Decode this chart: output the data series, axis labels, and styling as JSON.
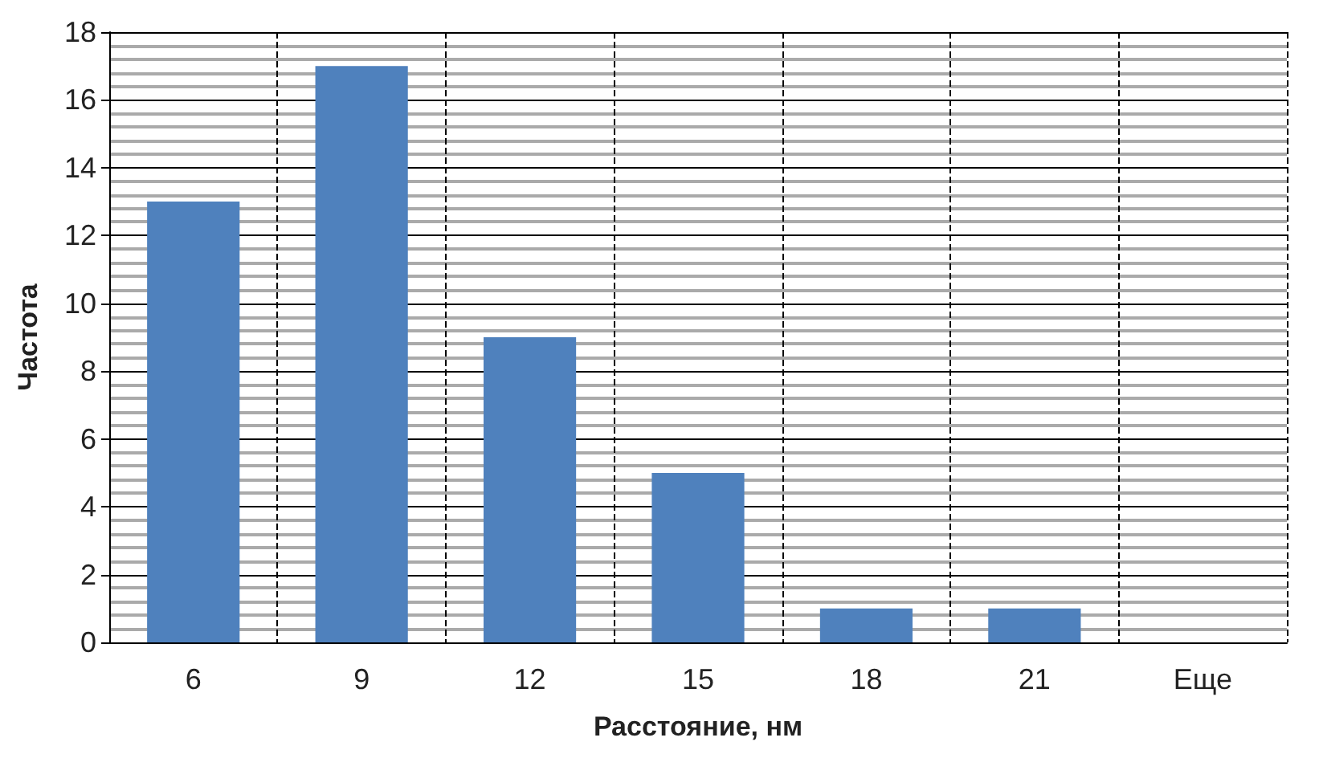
{
  "chart_data": {
    "type": "bar",
    "xlabel": "Расстояние, нм",
    "ylabel": "Частота",
    "categories": [
      "6",
      "9",
      "12",
      "15",
      "18",
      "21",
      "Еще"
    ],
    "values": [
      13,
      17,
      9,
      5,
      1,
      1,
      0
    ],
    "color": "#4f81bd",
    "ylim": [
      0,
      18
    ],
    "yticks": [
      0,
      2,
      4,
      6,
      8,
      10,
      12,
      14,
      16,
      18
    ],
    "grid": true
  }
}
